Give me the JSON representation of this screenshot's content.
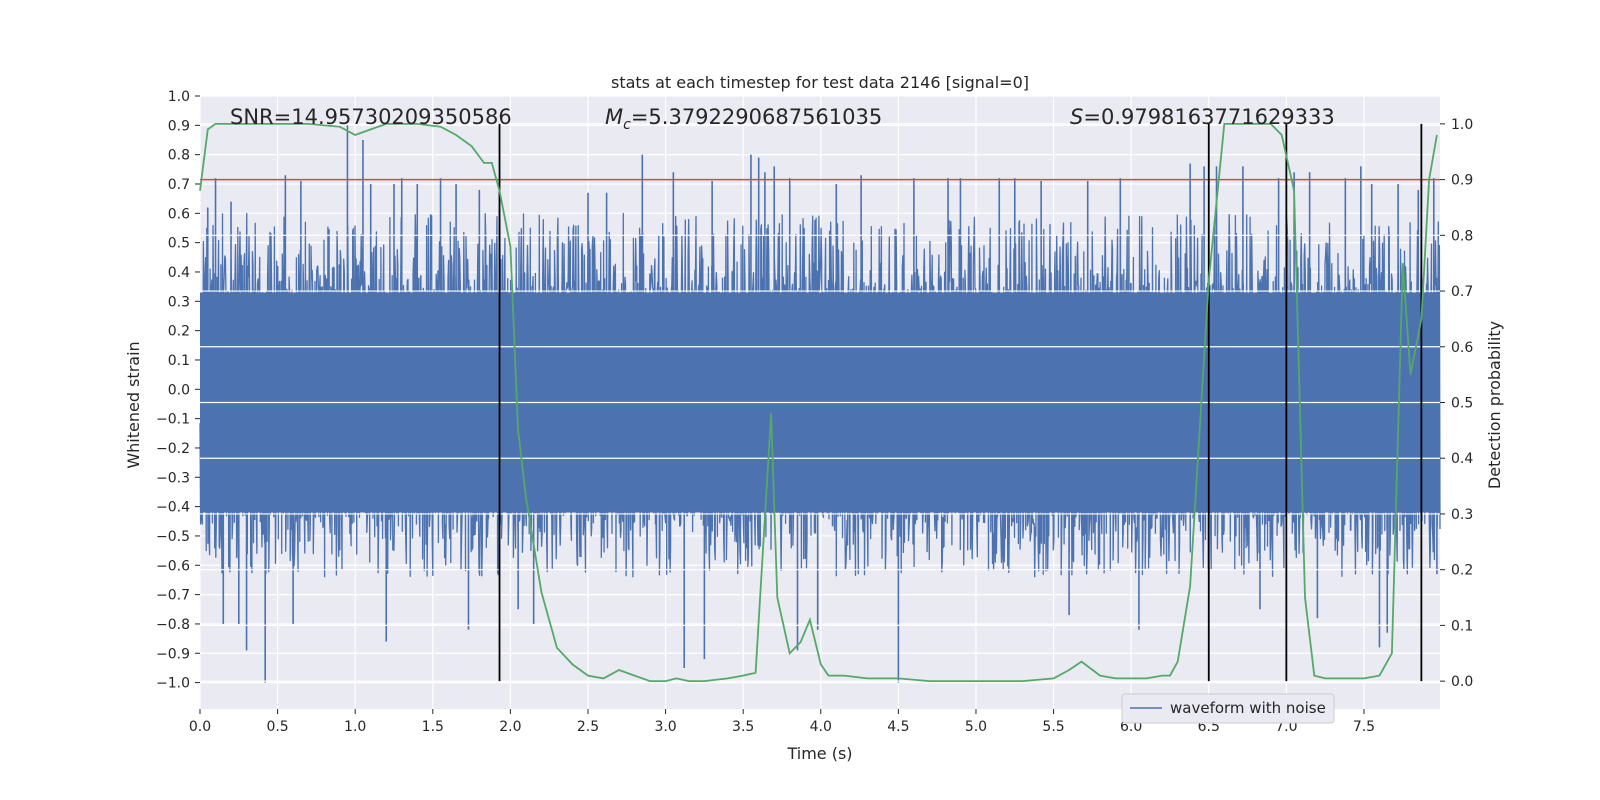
{
  "chart_data": {
    "type": "line",
    "title": "stats at each timestep for test data 2146 [signal=0]",
    "xlabel": "Time (s)",
    "ylabel": "Whitened strain",
    "y2label": "Detection probability",
    "xlim": [
      0.0,
      7.99
    ],
    "ylim": [
      -1.09,
      1.0
    ],
    "y2lim": [
      -0.05,
      1.05
    ],
    "xticks": [
      0.0,
      0.5,
      1.0,
      1.5,
      2.0,
      2.5,
      3.0,
      3.5,
      4.0,
      4.5,
      5.0,
      5.5,
      6.0,
      6.5,
      7.0,
      7.5
    ],
    "xtick_labels": [
      "0.0",
      "0.5",
      "1.0",
      "1.5",
      "2.0",
      "2.5",
      "3.0",
      "3.5",
      "4.0",
      "4.5",
      "5.0",
      "5.5",
      "6.0",
      "6.5",
      "7.0",
      "7.5"
    ],
    "yticks": [
      1.0,
      0.9,
      0.8,
      0.7,
      0.6,
      0.5,
      0.4,
      0.3,
      0.2,
      0.1,
      0.0,
      -0.1,
      -0.2,
      -0.3,
      -0.4,
      -0.5,
      -0.6,
      -0.7,
      -0.8,
      -0.9,
      -1.0
    ],
    "ytick_labels": [
      "1.0",
      "0.9",
      "0.8",
      "0.7",
      "0.6",
      "0.5",
      "0.4",
      "0.3",
      "0.2",
      "0.1",
      "0.0",
      "−0.1",
      "−0.2",
      "−0.3",
      "−0.4",
      "−0.5",
      "−0.6",
      "−0.7",
      "−0.8",
      "−0.9",
      "−1.0"
    ],
    "y2ticks": [
      1.0,
      0.9,
      0.8,
      0.7,
      0.6,
      0.5,
      0.4,
      0.3,
      0.2,
      0.1,
      0.0
    ],
    "y2tick_labels": [
      "1.0",
      "0.9",
      "0.8",
      "0.7",
      "0.6",
      "0.5",
      "0.4",
      "0.3",
      "0.2",
      "0.1",
      "0.0"
    ],
    "grid": true,
    "legend": {
      "entries": [
        "waveform with noise"
      ],
      "placement": "lower-right"
    },
    "annotations": {
      "snr": "SNR=14.95730209350586",
      "mc_symbol": "M",
      "mc_subscript": "c",
      "mc_value": "=5.3792290687561035",
      "s_symbol": "S",
      "s_value": "=0.9798163771629333"
    },
    "threshold": {
      "axis": "y2",
      "value": 0.9,
      "color": "#c44e52"
    },
    "vertical_lines": [
      1.93,
      6.5,
      7.0,
      7.87
    ],
    "waveform": {
      "name": "waveform with noise",
      "color": "#4c72b0",
      "duration_s": 7.99,
      "core_envelope": [
        -0.42,
        0.33
      ],
      "spikes": [
        [
          0.05,
          0.62
        ],
        [
          0.1,
          0.72
        ],
        [
          0.15,
          -0.8
        ],
        [
          0.2,
          0.64
        ],
        [
          0.25,
          -0.8
        ],
        [
          0.3,
          -0.89
        ],
        [
          0.42,
          -1.0
        ],
        [
          0.55,
          0.73
        ],
        [
          0.6,
          -0.8
        ],
        [
          0.65,
          0.71
        ],
        [
          0.95,
          0.9
        ],
        [
          1.05,
          0.85
        ],
        [
          1.1,
          0.7
        ],
        [
          1.2,
          -0.86
        ],
        [
          1.25,
          0.7
        ],
        [
          1.3,
          0.72
        ],
        [
          1.4,
          0.7
        ],
        [
          1.55,
          0.72
        ],
        [
          1.65,
          0.7
        ],
        [
          1.73,
          -0.82
        ],
        [
          1.8,
          0.68
        ],
        [
          1.93,
          0.67
        ],
        [
          2.05,
          -0.75
        ],
        [
          2.15,
          -0.8
        ],
        [
          2.5,
          0.67
        ],
        [
          2.62,
          0.67
        ],
        [
          2.85,
          0.8
        ],
        [
          3.05,
          0.74
        ],
        [
          3.12,
          -0.95
        ],
        [
          3.25,
          -0.92
        ],
        [
          3.3,
          0.71
        ],
        [
          3.55,
          0.8
        ],
        [
          3.6,
          0.79
        ],
        [
          3.64,
          0.74
        ],
        [
          3.7,
          0.76
        ],
        [
          3.8,
          0.72
        ],
        [
          3.85,
          -0.89
        ],
        [
          3.98,
          -0.82
        ],
        [
          4.1,
          0.7
        ],
        [
          4.26,
          0.73
        ],
        [
          4.5,
          -1.0
        ],
        [
          4.6,
          0.72
        ],
        [
          4.82,
          0.72
        ],
        [
          4.9,
          0.72
        ],
        [
          5.15,
          0.72
        ],
        [
          5.25,
          0.72
        ],
        [
          5.42,
          0.71
        ],
        [
          5.6,
          -0.77
        ],
        [
          5.72,
          0.71
        ],
        [
          5.93,
          0.72
        ],
        [
          6.05,
          -0.82
        ],
        [
          6.38,
          0.77
        ],
        [
          6.47,
          0.76
        ],
        [
          6.55,
          0.76
        ],
        [
          6.72,
          0.76
        ],
        [
          6.83,
          -0.75
        ],
        [
          6.95,
          0.72
        ],
        [
          7.05,
          0.74
        ],
        [
          7.15,
          0.74
        ],
        [
          7.2,
          -0.78
        ],
        [
          7.38,
          0.72
        ],
        [
          7.48,
          0.76
        ],
        [
          7.55,
          0.7
        ],
        [
          7.6,
          -0.88
        ],
        [
          7.65,
          -0.83
        ],
        [
          7.72,
          0.7
        ],
        [
          7.85,
          0.68
        ],
        [
          7.95,
          0.72
        ],
        [
          7.97,
          -0.63
        ]
      ]
    },
    "series": [
      {
        "name": "detection probability",
        "axis": "y2",
        "color": "#55a868",
        "x": [
          0.0,
          0.05,
          0.1,
          0.15,
          0.3,
          0.5,
          0.7,
          0.9,
          1.0,
          1.1,
          1.2,
          1.4,
          1.55,
          1.65,
          1.75,
          1.83,
          1.88,
          1.93,
          2.0,
          2.05,
          2.1,
          2.2,
          2.3,
          2.4,
          2.5,
          2.6,
          2.7,
          2.8,
          2.9,
          3.0,
          3.07,
          3.15,
          3.25,
          3.4,
          3.5,
          3.58,
          3.68,
          3.72,
          3.8,
          3.87,
          3.93,
          4.0,
          4.05,
          4.15,
          4.3,
          4.5,
          4.7,
          4.9,
          5.1,
          5.3,
          5.5,
          5.6,
          5.68,
          5.8,
          5.9,
          6.0,
          6.1,
          6.2,
          6.25,
          6.3,
          6.38,
          6.5,
          6.6,
          6.7,
          6.9,
          6.97,
          7.05,
          7.12,
          7.18,
          7.25,
          7.35,
          7.5,
          7.6,
          7.68,
          7.75,
          7.8,
          7.87,
          7.92,
          7.97
        ],
        "y": [
          0.88,
          0.99,
          1.0,
          1.0,
          1.0,
          1.0,
          1.0,
          0.995,
          0.98,
          0.99,
          1.0,
          1.0,
          0.995,
          0.98,
          0.96,
          0.93,
          0.93,
          0.88,
          0.78,
          0.45,
          0.33,
          0.16,
          0.06,
          0.03,
          0.01,
          0.005,
          0.02,
          0.01,
          0.0,
          0.0,
          0.005,
          0.0,
          0.0,
          0.005,
          0.01,
          0.015,
          0.48,
          0.15,
          0.05,
          0.07,
          0.11,
          0.03,
          0.01,
          0.01,
          0.005,
          0.005,
          0.0,
          0.0,
          0.0,
          0.0,
          0.005,
          0.02,
          0.035,
          0.01,
          0.005,
          0.005,
          0.005,
          0.01,
          0.01,
          0.035,
          0.17,
          0.72,
          1.0,
          1.0,
          1.0,
          0.98,
          0.88,
          0.15,
          0.01,
          0.005,
          0.005,
          0.005,
          0.01,
          0.05,
          0.75,
          0.55,
          0.65,
          0.9,
          0.98
        ]
      }
    ]
  }
}
